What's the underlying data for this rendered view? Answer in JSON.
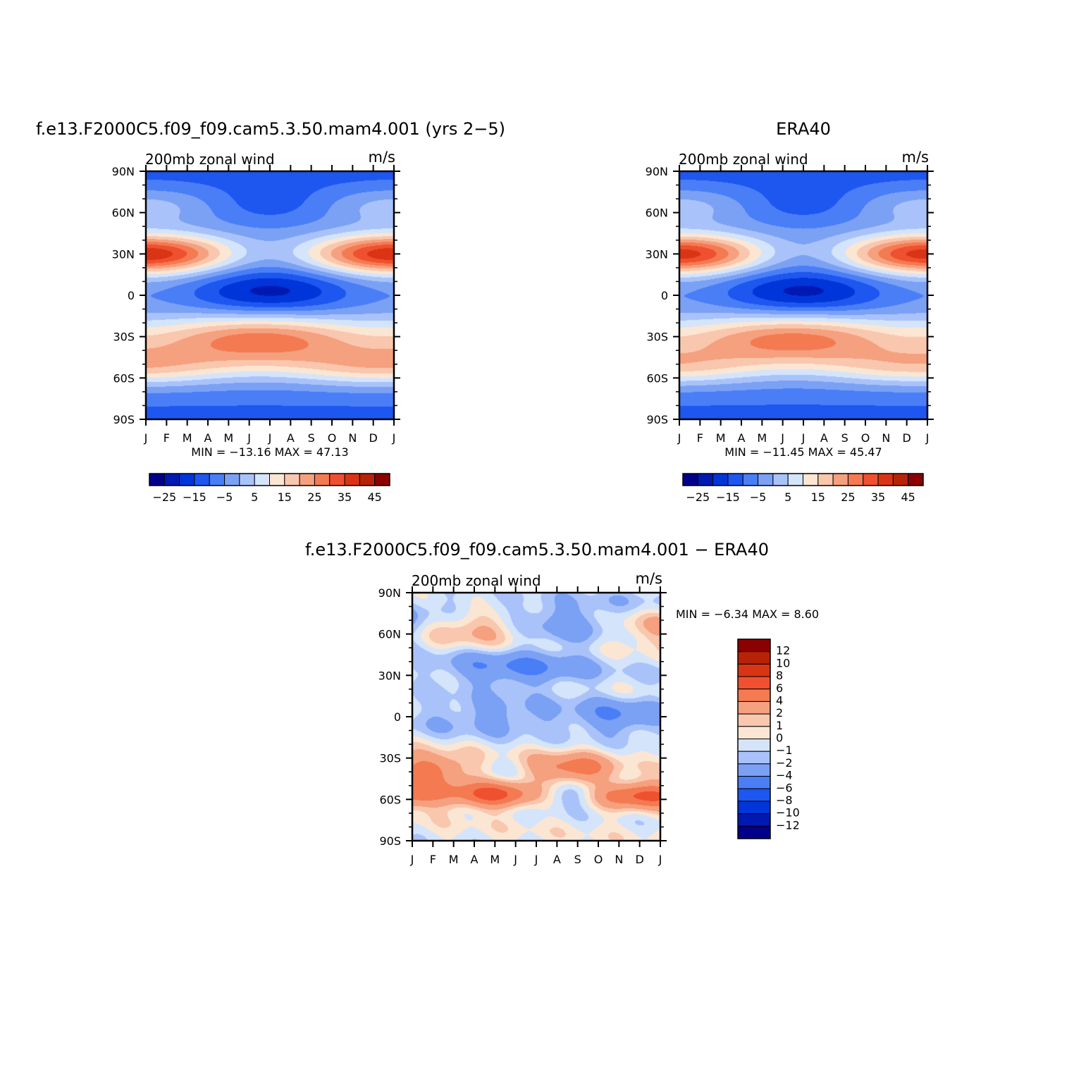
{
  "panels": [
    {
      "id": "model",
      "title": "f.e13.F2000C5.f09_f09.cam5.3.50.mam4.001 (yrs 2−5)",
      "left_label": "200mb zonal wind",
      "right_label": "m/s",
      "stats_text": "MIN = −13.16 MAX =   47.13"
    },
    {
      "id": "obs",
      "title": "ERA40",
      "left_label": "200mb zonal wind",
      "right_label": "m/s",
      "stats_text": "MIN = −11.45 MAX =   45.47"
    },
    {
      "id": "diff",
      "title": "f.e13.F2000C5.f09_f09.cam5.3.50.mam4.001 − ERA40",
      "left_label": "200mb zonal wind",
      "right_label": "m/s",
      "stats_text": "MIN =   −6.34 MAX =    8.60"
    }
  ],
  "chart_data": [
    {
      "type": "heatmap",
      "panel": "model",
      "x": [
        "J",
        "F",
        "M",
        "A",
        "M",
        "J",
        "J",
        "A",
        "S",
        "O",
        "N",
        "D",
        "J"
      ],
      "y": [
        "90N",
        "60N",
        "30N",
        "0",
        "30S",
        "60S",
        "90S"
      ],
      "lat_values": [
        90,
        60,
        30,
        0,
        -30,
        -60,
        -90
      ],
      "units": "m/s",
      "colorbar": {
        "orientation": "horizontal",
        "tick_labels": [
          "−25",
          "−15",
          "−5",
          "5",
          "15",
          "25",
          "35",
          "45"
        ],
        "colors": [
          "#00008b",
          "#0019b3",
          "#0035d9",
          "#1e56f0",
          "#4a7ef7",
          "#7ba1f5",
          "#a9c3fa",
          "#d4e4fb",
          "#fbe6d4",
          "#f9c7ae",
          "#f5a07e",
          "#f47a52",
          "#ef5030",
          "#d93515",
          "#b82208",
          "#8b0000"
        ]
      },
      "min": -13.16,
      "max": 47.13
    },
    {
      "type": "heatmap",
      "panel": "obs",
      "x": [
        "J",
        "F",
        "M",
        "A",
        "M",
        "J",
        "J",
        "A",
        "S",
        "O",
        "N",
        "D",
        "J"
      ],
      "y": [
        "90N",
        "60N",
        "30N",
        "0",
        "30S",
        "60S",
        "90S"
      ],
      "lat_values": [
        90,
        60,
        30,
        0,
        -30,
        -60,
        -90
      ],
      "units": "m/s",
      "colorbar": {
        "orientation": "horizontal",
        "tick_labels": [
          "−25",
          "−15",
          "−5",
          "5",
          "15",
          "25",
          "35",
          "45"
        ],
        "colors": [
          "#00008b",
          "#0019b3",
          "#0035d9",
          "#1e56f0",
          "#4a7ef7",
          "#7ba1f5",
          "#a9c3fa",
          "#d4e4fb",
          "#fbe6d4",
          "#f9c7ae",
          "#f5a07e",
          "#f47a52",
          "#ef5030",
          "#d93515",
          "#b82208",
          "#8b0000"
        ]
      },
      "min": -11.45,
      "max": 45.47
    },
    {
      "type": "heatmap",
      "panel": "diff",
      "x": [
        "J",
        "F",
        "M",
        "A",
        "M",
        "J",
        "J",
        "A",
        "S",
        "O",
        "N",
        "D",
        "J"
      ],
      "y": [
        "90N",
        "60N",
        "30N",
        "0",
        "30S",
        "60S",
        "90S"
      ],
      "lat_values": [
        90,
        60,
        30,
        0,
        -30,
        -60,
        -90
      ],
      "units": "m/s",
      "colorbar": {
        "orientation": "vertical",
        "tick_labels": [
          "12",
          "10",
          "8",
          "6",
          "4",
          "2",
          "1",
          "0",
          "−1",
          "−2",
          "−4",
          "−6",
          "−8",
          "−10",
          "−12"
        ],
        "colors": [
          "#8b0000",
          "#b82208",
          "#d93515",
          "#ef5030",
          "#f47a52",
          "#f5a07e",
          "#f9c7ae",
          "#fbe6d4",
          "#d4e4fb",
          "#a9c3fa",
          "#7ba1f5",
          "#4a7ef7",
          "#1e56f0",
          "#0035d9",
          "#0019b3",
          "#00008b"
        ]
      },
      "min": -6.34,
      "max": 8.6
    }
  ]
}
